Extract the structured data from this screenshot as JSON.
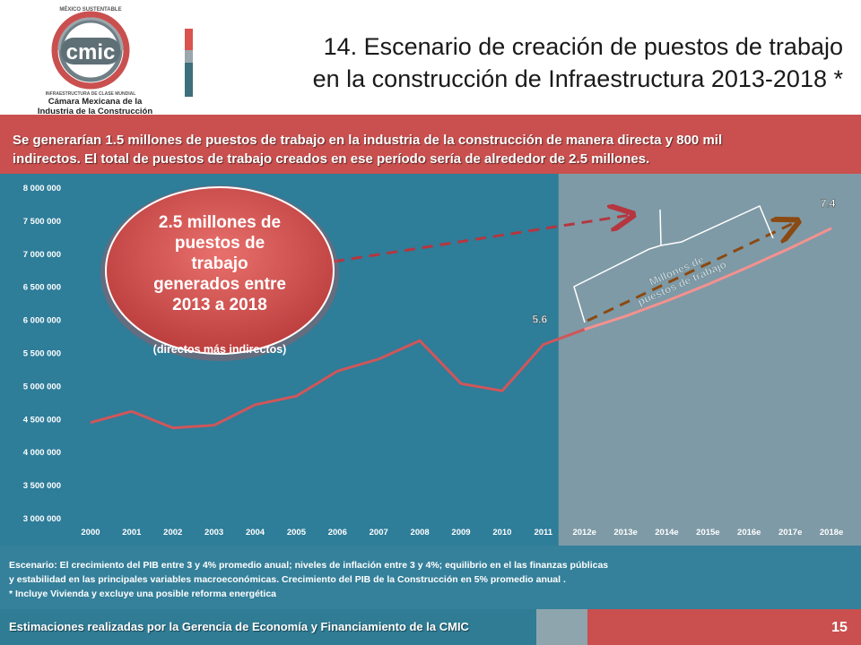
{
  "logo": {
    "top_text": "MÉXICO SUSTENTABLE",
    "brand": "cmic",
    "tagline": "INFRAESTRUCTURA DE CLASE MUNDIAL",
    "org_line1": "Cámara Mexicana de la",
    "org_line2": "Industria de la Construcción"
  },
  "title": {
    "line1": "14. Escenario de creación de puestos de trabajo",
    "line2": "en la construcción de Infraestructura 2013-2018 *"
  },
  "banner": {
    "line1": "Se generarían 1.5 millones de puestos de trabajo en la industria de la construcción de manera directa y 800 mil",
    "line2": "indirectos. El total de puestos de trabajo creados en ese período sería de alrededor de 2.5 millones."
  },
  "colors": {
    "chart_bg": "#2e7d99",
    "forecast_bg": "#7e9aa6",
    "banner": "#c9504f",
    "line_hist": "#d0565a",
    "line_forecast": "#f4918f",
    "arrow_red": "#b5363f",
    "arrow_brown": "#8a4a12"
  },
  "callout": {
    "text_lines": [
      "2.5 millones de",
      "puestos de",
      "trabajo",
      "generados entre",
      "2013 a 2018"
    ],
    "subtext": "(directos más indirectos)"
  },
  "brace_label": {
    "line1": "Millones de",
    "line2": "puestos de trabajo"
  },
  "chart_data": {
    "type": "line",
    "title": "",
    "xlabel": "",
    "ylabel": "",
    "categories": [
      "2000",
      "2001",
      "2002",
      "2003",
      "2004",
      "2005",
      "2006",
      "2007",
      "2008",
      "2009",
      "2010",
      "2011",
      "2012e",
      "2013e",
      "2014e",
      "2015e",
      "2016e",
      "2017e",
      "2018e"
    ],
    "series": [
      {
        "values": [
          4440000,
          4610000,
          4360000,
          4400000,
          4710000,
          4840000,
          5220000,
          5400000,
          5680000,
          5030000,
          4920000,
          5620000,
          5850000,
          6050000,
          6280000,
          6530000,
          6800000,
          7080000,
          7380000
        ]
      }
    ],
    "forecast_start_index": 12,
    "ylim": [
      3000000,
      8000000
    ],
    "yticks": [
      "3 000 000",
      "3 500 000",
      "4 000 000",
      "4 500 000",
      "5 000 000",
      "5 500 000",
      "6 000 000",
      "6 500 000",
      "7 000 000",
      "7 500 000",
      "8 000 000"
    ],
    "ytick_values": [
      3000000,
      3500000,
      4000000,
      4500000,
      5000000,
      5500000,
      6000000,
      6500000,
      7000000,
      7500000,
      8000000
    ],
    "grid": false,
    "legend": "none",
    "annotations": [
      {
        "category": "2011",
        "label": "5.6"
      },
      {
        "category": "2018e",
        "label": "7.4"
      }
    ]
  },
  "scenario": {
    "line1": "Escenario: El crecimiento del PIB entre 3 y 4%  promedio anual; niveles de inflación entre 3 y 4%; equilibrio en el  las finanzas públicas",
    "line2": "y estabilidad en las principales variables macroeconómicas. Crecimiento del PIB de la Construcción en  5% promedio anual .",
    "line3": "* Incluye Vivienda y excluye una posible  reforma energética"
  },
  "footer": {
    "text": "Estimaciones realizadas por la Gerencia de Economía y Financiamiento  de la CMIC",
    "page": "15"
  }
}
